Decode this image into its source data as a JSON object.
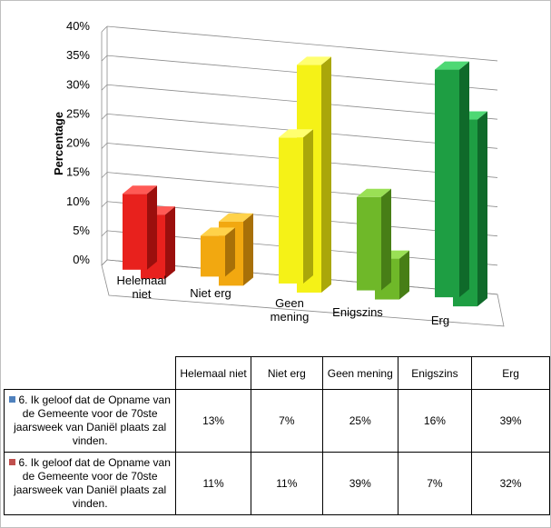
{
  "chart_data": {
    "type": "bar",
    "variant": "3d-clustered-column",
    "title": "",
    "xlabel": "",
    "ylabel": "Percentage",
    "ylim": [
      0,
      40
    ],
    "yticks": [
      0,
      5,
      10,
      15,
      20,
      25,
      30,
      35,
      40
    ],
    "ytick_format": "percent",
    "grid": true,
    "legend": "table-below",
    "categories": [
      "Helemaal niet",
      "Niet erg",
      "Geen mening",
      "Enigszins",
      "Erg"
    ],
    "categories_table": [
      "Helemaal niet",
      "Niet erg",
      "Geen mening",
      "Enigszins",
      "Erg"
    ],
    "category_colors": [
      {
        "front": "#e8211d",
        "side": "#9b0f0d",
        "top": "#ff5a55"
      },
      {
        "front": "#f2a810",
        "side": "#a87008",
        "top": "#ffd24a"
      },
      {
        "front": "#f5f217",
        "side": "#aaa70a",
        "top": "#ffff70"
      },
      {
        "front": "#6fb829",
        "side": "#477e16",
        "top": "#9ae055"
      },
      {
        "front": "#1e9e43",
        "side": "#0f6a2a",
        "top": "#4ed874"
      }
    ],
    "series": [
      {
        "name": "6. Ik geloof dat de Opname van de Gemeente voor de 70ste jaarsweek van Daniël plaats zal vinden.",
        "values": [
          13,
          7,
          25,
          16,
          39
        ],
        "legend_color": "#4f81bd"
      },
      {
        "name": "6. Ik geloof dat de Opname van de Gemeente voor de 70ste jaarsweek van Daniël plaats zal vinden.",
        "values": [
          11,
          11,
          39,
          7,
          32
        ],
        "legend_color": "#c0504d"
      }
    ]
  }
}
